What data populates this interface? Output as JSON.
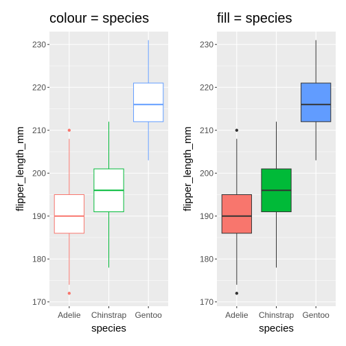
{
  "chart_data": [
    {
      "type": "box",
      "title": "colour = species",
      "xlabel": "species",
      "ylabel": "flipper_length_mm",
      "style": "colour",
      "categories": [
        "Adelie",
        "Chinstrap",
        "Gentoo"
      ],
      "colors": [
        "#F8766D",
        "#00BA38",
        "#619CFF"
      ],
      "ylim": [
        169,
        233
      ],
      "yticks": [
        170,
        180,
        190,
        200,
        210,
        220,
        230
      ],
      "grid": true,
      "boxes": [
        {
          "name": "Adelie",
          "lower_whisker": 174,
          "q1": 186,
          "median": 190,
          "q3": 195,
          "upper_whisker": 208,
          "outliers": [
            210,
            172
          ]
        },
        {
          "name": "Chinstrap",
          "lower_whisker": 178,
          "q1": 191,
          "median": 196,
          "q3": 201,
          "upper_whisker": 212,
          "outliers": []
        },
        {
          "name": "Gentoo",
          "lower_whisker": 203,
          "q1": 212,
          "median": 216,
          "q3": 221,
          "upper_whisker": 231,
          "outliers": []
        }
      ]
    },
    {
      "type": "box",
      "title": "fill = species",
      "xlabel": "species",
      "ylabel": "flipper_length_mm",
      "style": "fill",
      "categories": [
        "Adelie",
        "Chinstrap",
        "Gentoo"
      ],
      "colors": [
        "#F8766D",
        "#00BA38",
        "#619CFF"
      ],
      "line_color": "#333333",
      "ylim": [
        169,
        233
      ],
      "yticks": [
        170,
        180,
        190,
        200,
        210,
        220,
        230
      ],
      "grid": true,
      "boxes": [
        {
          "name": "Adelie",
          "lower_whisker": 174,
          "q1": 186,
          "median": 190,
          "q3": 195,
          "upper_whisker": 208,
          "outliers": [
            210,
            172
          ]
        },
        {
          "name": "Chinstrap",
          "lower_whisker": 178,
          "q1": 191,
          "median": 196,
          "q3": 201,
          "upper_whisker": 212,
          "outliers": []
        },
        {
          "name": "Gentoo",
          "lower_whisker": 203,
          "q1": 212,
          "median": 216,
          "q3": 221,
          "upper_whisker": 231,
          "outliers": []
        }
      ]
    }
  ]
}
